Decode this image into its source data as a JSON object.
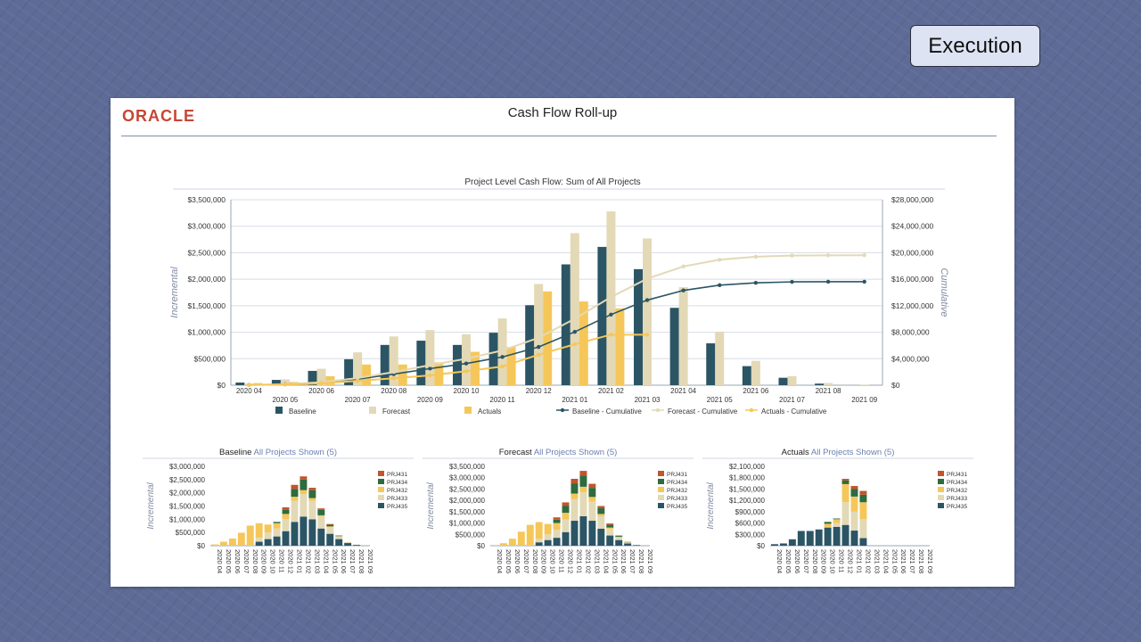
{
  "badge": {
    "label": "Execution"
  },
  "header": {
    "logo_text": "ORACLE",
    "title": "Cash Flow Roll-up"
  },
  "colors": {
    "baseline": "#2b5565",
    "forecast": "#e3d9b6",
    "actuals": "#f5c75a",
    "prj431": "#c1552c",
    "prj434": "#2e6b3e",
    "prj432": "#f5c75a",
    "prj433": "#e3d9b6",
    "prj435": "#2b5565"
  },
  "chart_data": [
    {
      "type": "bar",
      "title": "Project Level Cash Flow: Sum of All Projects",
      "categories": [
        "2020 04",
        "2020 05",
        "2020 06",
        "2020 07",
        "2020 08",
        "2020 09",
        "2020 10",
        "2020 11",
        "2020 12",
        "2021 01",
        "2021 02",
        "2021 03",
        "2021 04",
        "2021 05",
        "2021 06",
        "2021 07",
        "2021 08",
        "2021 09"
      ],
      "ylabel": "Incremental",
      "y2label": "Cumulative",
      "ylim": [
        0,
        3500000
      ],
      "y2lim": [
        0,
        28000000
      ],
      "yticks": [
        "$0",
        "$500,000",
        "$1,000,000",
        "$1,500,000",
        "$2,000,000",
        "$2,500,000",
        "$3,000,000",
        "$3,500,000"
      ],
      "y2ticks": [
        "$0",
        "$4,000,000",
        "$8,000,000",
        "$12,000,000",
        "$16,000,000",
        "$20,000,000",
        "$24,000,000",
        "$28,000,000"
      ],
      "series": [
        {
          "name": "Baseline",
          "kind": "bar",
          "color_key": "baseline",
          "values": [
            50000,
            100000,
            270000,
            490000,
            760000,
            840000,
            760000,
            990000,
            1510000,
            2280000,
            2610000,
            2190000,
            1460000,
            790000,
            360000,
            140000,
            30000,
            0
          ]
        },
        {
          "name": "Forecast",
          "kind": "bar",
          "color_key": "forecast",
          "values": [
            30000,
            110000,
            310000,
            620000,
            920000,
            1040000,
            960000,
            1260000,
            1910000,
            2870000,
            3280000,
            2770000,
            1850000,
            1010000,
            460000,
            170000,
            40000,
            10000
          ]
        },
        {
          "name": "Actuals",
          "kind": "bar",
          "color_key": "actuals",
          "values": [
            40000,
            60000,
            170000,
            390000,
            390000,
            430000,
            630000,
            720000,
            1770000,
            1580000,
            1450000,
            null,
            null,
            null,
            null,
            null,
            null,
            null
          ]
        },
        {
          "name": "Baseline - Cumulative",
          "kind": "line",
          "color_key": "baseline",
          "values": [
            50000,
            150000,
            420000,
            910000,
            1670000,
            2510000,
            3270000,
            4260000,
            5770000,
            8050000,
            10660000,
            12850000,
            14310000,
            15100000,
            15460000,
            15600000,
            15630000,
            15630000
          ]
        },
        {
          "name": "Forecast - Cumulative",
          "kind": "line",
          "color_key": "forecast",
          "values": [
            30000,
            140000,
            450000,
            1070000,
            1990000,
            3030000,
            3990000,
            5250000,
            7160000,
            10030000,
            13310000,
            16080000,
            17930000,
            18940000,
            19400000,
            19570000,
            19610000,
            19620000
          ]
        },
        {
          "name": "Actuals  - Cumulative",
          "kind": "line",
          "color_key": "actuals",
          "values": [
            40000,
            100000,
            270000,
            660000,
            1050000,
            1480000,
            2110000,
            2830000,
            4600000,
            6180000,
            7630000,
            7630000,
            null,
            null,
            null,
            null,
            null,
            null
          ]
        }
      ],
      "legend": [
        "Baseline",
        "Forecast",
        "Actuals",
        "Baseline - Cumulative",
        "Forecast - Cumulative",
        "Actuals  - Cumulative"
      ]
    },
    {
      "type": "bar",
      "title": "Baseline",
      "subtitle": "All Projects Shown (5)",
      "ylabel": "Incremental",
      "ylim": [
        0,
        3000000
      ],
      "yticks": [
        "$0",
        "$500,000",
        "$1,000,000",
        "$1,500,000",
        "$2,000,000",
        "$2,500,000",
        "$3,000,000"
      ],
      "categories": [
        "2020 04",
        "2020 05",
        "2020 06",
        "2020 07",
        "2020 08",
        "2020 09",
        "2020 10",
        "2020 11",
        "2020 12",
        "2021 01",
        "2021 02",
        "2021 03",
        "2021 04",
        "2021 05",
        "2021 06",
        "2021 07",
        "2021 08",
        "2021 09"
      ],
      "legend": [
        "PRJ431",
        "PRJ434",
        "PRJ432",
        "PRJ433",
        "PRJ435"
      ],
      "stack_order": [
        "PRJ435",
        "PRJ433",
        "PRJ432",
        "PRJ434",
        "PRJ431"
      ],
      "series": [
        {
          "name": "PRJ435",
          "color_key": "prj435",
          "values": [
            0,
            0,
            0,
            0,
            0,
            150000,
            250000,
            350000,
            550000,
            900000,
            1100000,
            1000000,
            650000,
            450000,
            250000,
            100000,
            30000,
            0
          ]
        },
        {
          "name": "PRJ433",
          "color_key": "prj433",
          "values": [
            0,
            0,
            0,
            0,
            0,
            150000,
            250000,
            300000,
            450000,
            800000,
            850000,
            700000,
            450000,
            250000,
            100000,
            40000,
            10000,
            0
          ]
        },
        {
          "name": "PRJ432",
          "color_key": "prj432",
          "values": [
            50000,
            150000,
            270000,
            490000,
            760000,
            550000,
            300000,
            200000,
            200000,
            150000,
            150000,
            100000,
            50000,
            30000,
            10000,
            0,
            0,
            0
          ]
        },
        {
          "name": "PRJ434",
          "color_key": "prj434",
          "values": [
            0,
            0,
            0,
            0,
            0,
            0,
            0,
            50000,
            150000,
            300000,
            400000,
            300000,
            200000,
            60000,
            20000,
            0,
            0,
            0
          ]
        },
        {
          "name": "PRJ431",
          "color_key": "prj431",
          "values": [
            0,
            0,
            0,
            0,
            0,
            0,
            0,
            0,
            100000,
            150000,
            120000,
            90000,
            60000,
            30000,
            10000,
            0,
            0,
            0
          ]
        }
      ]
    },
    {
      "type": "bar",
      "title": "Forecast",
      "subtitle": "All Projects Shown (5)",
      "ylabel": "Incremental",
      "ylim": [
        0,
        3500000
      ],
      "yticks": [
        "$0",
        "$500,000",
        "$1,000,000",
        "$1,500,000",
        "$2,000,000",
        "$2,500,000",
        "$3,000,000",
        "$3,500,000"
      ],
      "categories": [
        "2020 04",
        "2020 05",
        "2020 06",
        "2020 07",
        "2020 08",
        "2020 09",
        "2020 10",
        "2020 11",
        "2020 12",
        "2021 01",
        "2021 02",
        "2021 03",
        "2021 04",
        "2021 05",
        "2021 06",
        "2021 07",
        "2021 08",
        "2021 09"
      ],
      "legend": [
        "PRJ431",
        "PRJ434",
        "PRJ432",
        "PRJ433",
        "PRJ435"
      ],
      "stack_order": [
        "PRJ435",
        "PRJ433",
        "PRJ432",
        "PRJ434",
        "PRJ431"
      ],
      "series": [
        {
          "name": "PRJ435",
          "color_key": "prj435",
          "values": [
            0,
            0,
            0,
            0,
            0,
            150000,
            250000,
            350000,
            600000,
            1100000,
            1300000,
            1100000,
            750000,
            450000,
            250000,
            100000,
            30000,
            0
          ]
        },
        {
          "name": "PRJ433",
          "color_key": "prj433",
          "values": [
            0,
            0,
            0,
            0,
            0,
            150000,
            250000,
            350000,
            550000,
            950000,
            1050000,
            850000,
            550000,
            300000,
            120000,
            40000,
            10000,
            0
          ]
        },
        {
          "name": "PRJ432",
          "color_key": "prj432",
          "values": [
            30000,
            110000,
            310000,
            620000,
            920000,
            740000,
            460000,
            300000,
            300000,
            250000,
            250000,
            200000,
            100000,
            50000,
            20000,
            10000,
            0,
            0
          ]
        },
        {
          "name": "PRJ434",
          "color_key": "prj434",
          "values": [
            0,
            0,
            0,
            0,
            0,
            0,
            0,
            150000,
            300000,
            450000,
            500000,
            400000,
            250000,
            120000,
            40000,
            10000,
            0,
            0
          ]
        },
        {
          "name": "PRJ431",
          "color_key": "prj431",
          "values": [
            0,
            0,
            0,
            0,
            0,
            0,
            0,
            100000,
            160000,
            200000,
            200000,
            180000,
            100000,
            60000,
            20000,
            10000,
            0,
            0
          ]
        }
      ]
    },
    {
      "type": "bar",
      "title": "Actuals",
      "subtitle": "All Projects Shown (5)",
      "ylabel": "Incremental",
      "ylim": [
        0,
        2100000
      ],
      "yticks": [
        "$0",
        "$300,000",
        "$600,000",
        "$900,000",
        "$1,200,000",
        "$1,500,000",
        "$1,800,000",
        "$2,100,000"
      ],
      "categories": [
        "2020 04",
        "2020 05",
        "2020 06",
        "2020 07",
        "2020 08",
        "2020 09",
        "2020 10",
        "2020 11",
        "2020 12",
        "2021 01",
        "2021 02",
        "2021 03",
        "2021 04",
        "2021 05",
        "2021 06",
        "2021 07",
        "2021 08",
        "2021 09"
      ],
      "legend": [
        "PRJ431",
        "PRJ434",
        "PRJ432",
        "PRJ433",
        "PRJ435"
      ],
      "stack_order": [
        "PRJ435",
        "PRJ433",
        "PRJ432",
        "PRJ434",
        "PRJ431"
      ],
      "series": [
        {
          "name": "PRJ435",
          "color_key": "prj435",
          "values": [
            40000,
            60000,
            170000,
            390000,
            390000,
            430000,
            480000,
            500000,
            550000,
            400000,
            200000,
            0,
            0,
            0,
            0,
            0,
            0,
            0
          ]
        },
        {
          "name": "PRJ433",
          "color_key": "prj433",
          "values": [
            0,
            0,
            0,
            0,
            0,
            0,
            0,
            100000,
            600000,
            500000,
            500000,
            0,
            0,
            0,
            0,
            0,
            0,
            0
          ]
        },
        {
          "name": "PRJ432",
          "color_key": "prj432",
          "values": [
            0,
            0,
            0,
            0,
            0,
            0,
            100000,
            100000,
            480000,
            400000,
            450000,
            0,
            0,
            0,
            0,
            0,
            0,
            0
          ]
        },
        {
          "name": "PRJ434",
          "color_key": "prj434",
          "values": [
            0,
            0,
            0,
            0,
            0,
            0,
            50000,
            20000,
            100000,
            200000,
            200000,
            0,
            0,
            0,
            0,
            0,
            0,
            0
          ]
        },
        {
          "name": "PRJ431",
          "color_key": "prj431",
          "values": [
            0,
            0,
            0,
            0,
            0,
            0,
            0,
            0,
            40000,
            80000,
            100000,
            0,
            0,
            0,
            0,
            0,
            0,
            0
          ]
        }
      ]
    }
  ]
}
